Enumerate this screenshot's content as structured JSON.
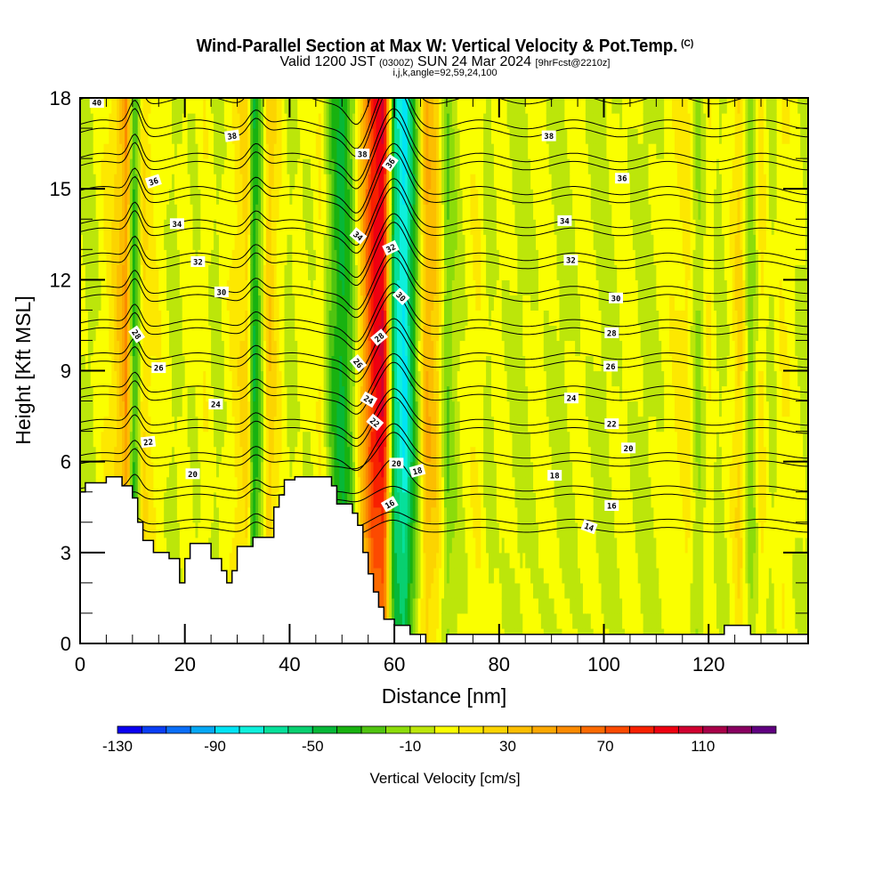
{
  "header": {
    "title": "Wind-Parallel Section at Max W: Vertical Velocity & Pot.Temp.",
    "copyright_mark": "(C)",
    "subtitle_valid": "Valid 1200 JST",
    "subtitle_utc": "(0300Z)",
    "subtitle_date": "SUN 24 Mar 2024",
    "subtitle_fcst": "[9hrFcst@2210z]",
    "params": "i,j,k,angle=92,59,24,100"
  },
  "chart_data": {
    "type": "heatmap",
    "title": "Wind-Parallel Section at Max W: Vertical Velocity & Pot.Temp.",
    "xlabel": "Distance [nm]",
    "ylabel": "Height [Kft MSL]",
    "xlim": [
      0,
      139
    ],
    "ylim": [
      0,
      18
    ],
    "x_ticks": [
      "0",
      "20",
      "40",
      "60",
      "80",
      "100",
      "120"
    ],
    "x_tick_values": [
      0,
      20,
      40,
      60,
      80,
      100,
      120
    ],
    "y_ticks": [
      "0",
      "3",
      "6",
      "9",
      "12",
      "15",
      "18"
    ],
    "y_tick_values": [
      0,
      3,
      6,
      9,
      12,
      15,
      18
    ],
    "colorbar": {
      "title": "Vertical Velocity [cm/s]",
      "min": -130,
      "step": 10,
      "tick_labels": [
        "-130",
        "-90",
        "-50",
        "-10",
        "30",
        "70",
        "110"
      ],
      "tick_values": [
        -130,
        -90,
        -50,
        -10,
        30,
        70,
        110
      ],
      "colors": [
        "#0a00f0",
        "#0a3ef5",
        "#0a6ef8",
        "#05a8f5",
        "#00e4f5",
        "#0ef0dc",
        "#06e09a",
        "#08d070",
        "#06b838",
        "#18b210",
        "#50c410",
        "#8cdc0a",
        "#bce60a",
        "#faff00",
        "#fde800",
        "#fcd400",
        "#fcbe00",
        "#fca800",
        "#fc8a00",
        "#fc6a00",
        "#fc4a00",
        "#f82000",
        "#ee0010",
        "#d00030",
        "#a80048",
        "#880060",
        "#600080"
      ]
    },
    "velocity_field": {
      "description_units": "cm/s",
      "columns": [
        {
          "x": 0,
          "w": 0
        },
        {
          "x": 2,
          "w": -5
        },
        {
          "x": 4,
          "w": 5
        },
        {
          "x": 6,
          "w": 15
        },
        {
          "x": 8,
          "w": 35
        },
        {
          "x": 9,
          "w": 55
        },
        {
          "x": 10,
          "w": -35
        },
        {
          "x": 11,
          "w": -20
        },
        {
          "x": 12,
          "w": 20
        },
        {
          "x": 14,
          "w": 10
        },
        {
          "x": 16,
          "w": 5
        },
        {
          "x": 18,
          "w": -5
        },
        {
          "x": 20,
          "w": 5
        },
        {
          "x": 22,
          "w": 0
        },
        {
          "x": 24,
          "w": 8
        },
        {
          "x": 26,
          "w": -5
        },
        {
          "x": 28,
          "w": 5
        },
        {
          "x": 30,
          "w": 15
        },
        {
          "x": 32,
          "w": 25
        },
        {
          "x": 33,
          "w": -40
        },
        {
          "x": 34,
          "w": -30
        },
        {
          "x": 36,
          "w": 30
        },
        {
          "x": 38,
          "w": 10
        },
        {
          "x": 40,
          "w": -5
        },
        {
          "x": 42,
          "w": 5
        },
        {
          "x": 44,
          "w": 0
        },
        {
          "x": 46,
          "w": 10
        },
        {
          "x": 48,
          "w": -25
        },
        {
          "x": 50,
          "w": -45
        },
        {
          "x": 52,
          "w": -20
        },
        {
          "x": 54,
          "w": 40
        },
        {
          "x": 56,
          "w": 90
        },
        {
          "x": 58,
          "w": 100
        },
        {
          "x": 60,
          "w": -60
        },
        {
          "x": 62,
          "w": -85
        },
        {
          "x": 63,
          "w": -55
        },
        {
          "x": 64,
          "w": -30
        },
        {
          "x": 66,
          "w": 40
        },
        {
          "x": 68,
          "w": 30
        },
        {
          "x": 70,
          "w": -20
        },
        {
          "x": 72,
          "w": -5
        },
        {
          "x": 74,
          "w": 5
        },
        {
          "x": 76,
          "w": 10
        },
        {
          "x": 78,
          "w": -5
        },
        {
          "x": 80,
          "w": 5
        },
        {
          "x": 84,
          "w": -5
        },
        {
          "x": 88,
          "w": 5
        },
        {
          "x": 92,
          "w": -5
        },
        {
          "x": 96,
          "w": 5
        },
        {
          "x": 100,
          "w": -5
        },
        {
          "x": 104,
          "w": 5
        },
        {
          "x": 108,
          "w": -5
        },
        {
          "x": 112,
          "w": 5
        },
        {
          "x": 116,
          "w": 15
        },
        {
          "x": 118,
          "w": -15
        },
        {
          "x": 120,
          "w": 10
        },
        {
          "x": 122,
          "w": -5
        },
        {
          "x": 124,
          "w": 5
        },
        {
          "x": 126,
          "w": 25
        },
        {
          "x": 128,
          "w": -20
        },
        {
          "x": 130,
          "w": 15
        },
        {
          "x": 132,
          "w": -5
        },
        {
          "x": 134,
          "w": 10
        },
        {
          "x": 136,
          "w": 5
        },
        {
          "x": 139,
          "w": -5
        }
      ]
    },
    "terrain_kft": [
      [
        0,
        5.0
      ],
      [
        1,
        5.0
      ],
      [
        1,
        5.3
      ],
      [
        5,
        5.3
      ],
      [
        5,
        5.5
      ],
      [
        8,
        5.5
      ],
      [
        8,
        5.2
      ],
      [
        10,
        5.2
      ],
      [
        10,
        4.8
      ],
      [
        11,
        4.8
      ],
      [
        11,
        4.0
      ],
      [
        12,
        4.0
      ],
      [
        12,
        3.4
      ],
      [
        14,
        3.4
      ],
      [
        14,
        3.0
      ],
      [
        17,
        3.0
      ],
      [
        17,
        2.8
      ],
      [
        19,
        2.8
      ],
      [
        19,
        2.0
      ],
      [
        20,
        2.0
      ],
      [
        20,
        2.8
      ],
      [
        21,
        2.8
      ],
      [
        21,
        3.3
      ],
      [
        25,
        3.3
      ],
      [
        25,
        2.8
      ],
      [
        27,
        2.8
      ],
      [
        27,
        2.4
      ],
      [
        28,
        2.4
      ],
      [
        28,
        2.0
      ],
      [
        29,
        2.0
      ],
      [
        29,
        2.4
      ],
      [
        30,
        2.4
      ],
      [
        30,
        3.2
      ],
      [
        33,
        3.2
      ],
      [
        33,
        3.5
      ],
      [
        37,
        3.5
      ],
      [
        37,
        4.5
      ],
      [
        38,
        4.5
      ],
      [
        38,
        4.9
      ],
      [
        39,
        4.9
      ],
      [
        39,
        5.4
      ],
      [
        41,
        5.4
      ],
      [
        41,
        5.5
      ],
      [
        48,
        5.5
      ],
      [
        48,
        5.2
      ],
      [
        49,
        5.2
      ],
      [
        49,
        4.6
      ],
      [
        52,
        4.6
      ],
      [
        52,
        4.3
      ],
      [
        53,
        4.3
      ],
      [
        53,
        3.9
      ],
      [
        54,
        3.9
      ],
      [
        54,
        3.0
      ],
      [
        55,
        3.0
      ],
      [
        55,
        2.3
      ],
      [
        56,
        2.3
      ],
      [
        56,
        1.7
      ],
      [
        57,
        1.7
      ],
      [
        57,
        1.2
      ],
      [
        58,
        1.2
      ],
      [
        58,
        0.8
      ],
      [
        60,
        0.8
      ],
      [
        60,
        0.6
      ],
      [
        63,
        0.6
      ],
      [
        63,
        0.3
      ],
      [
        66,
        0.3
      ],
      [
        66,
        0.0
      ],
      [
        70,
        0.0
      ],
      [
        70,
        0.3
      ],
      [
        123,
        0.3
      ],
      [
        123,
        0.6
      ],
      [
        128,
        0.6
      ],
      [
        128,
        0.3
      ],
      [
        139,
        0.3
      ]
    ],
    "theta_contours": {
      "levels": [
        14,
        16,
        18,
        20,
        22,
        24,
        26,
        28,
        30,
        32,
        34,
        36,
        38,
        40
      ],
      "labels": [
        {
          "text": "40",
          "x": 3.2,
          "y": 17.85,
          "rot": 0
        },
        {
          "text": "38",
          "x": 29,
          "y": 16.75,
          "rot": -8
        },
        {
          "text": "36",
          "x": 14,
          "y": 15.25,
          "rot": -18
        },
        {
          "text": "34",
          "x": 18.5,
          "y": 13.85,
          "rot": 0
        },
        {
          "text": "32",
          "x": 22.5,
          "y": 12.6,
          "rot": 0
        },
        {
          "text": "30",
          "x": 27,
          "y": 11.6,
          "rot": 0
        },
        {
          "text": "28",
          "x": 10.8,
          "y": 10.2,
          "rot": 55
        },
        {
          "text": "26",
          "x": 15,
          "y": 9.1,
          "rot": 0
        },
        {
          "text": "24",
          "x": 25.9,
          "y": 7.9,
          "rot": 0
        },
        {
          "text": "22",
          "x": 13,
          "y": 6.65,
          "rot": -6
        },
        {
          "text": "20",
          "x": 21.5,
          "y": 5.6,
          "rot": 0
        },
        {
          "text": "38",
          "x": 53.9,
          "y": 16.15,
          "rot": 0
        },
        {
          "text": "36",
          "x": 59.2,
          "y": 15.85,
          "rot": -55
        },
        {
          "text": "34",
          "x": 53.1,
          "y": 13.45,
          "rot": 40
        },
        {
          "text": "32",
          "x": 59.3,
          "y": 13.05,
          "rot": -25
        },
        {
          "text": "30",
          "x": 61.3,
          "y": 11.45,
          "rot": 45
        },
        {
          "text": "28",
          "x": 57.1,
          "y": 10.1,
          "rot": -40
        },
        {
          "text": "26",
          "x": 53.1,
          "y": 9.25,
          "rot": 50
        },
        {
          "text": "24",
          "x": 55.1,
          "y": 8.05,
          "rot": 30
        },
        {
          "text": "22",
          "x": 56.3,
          "y": 7.3,
          "rot": 40
        },
        {
          "text": "20",
          "x": 60.4,
          "y": 5.95,
          "rot": 0
        },
        {
          "text": "18",
          "x": 64.4,
          "y": 5.7,
          "rot": -15
        },
        {
          "text": "16",
          "x": 59.1,
          "y": 4.6,
          "rot": -30
        },
        {
          "text": "38",
          "x": 89.5,
          "y": 16.75,
          "rot": 0
        },
        {
          "text": "36",
          "x": 103.5,
          "y": 15.35,
          "rot": 0
        },
        {
          "text": "34",
          "x": 92.5,
          "y": 13.95,
          "rot": 0
        },
        {
          "text": "32",
          "x": 93.7,
          "y": 12.65,
          "rot": 0
        },
        {
          "text": "30",
          "x": 102.3,
          "y": 11.4,
          "rot": 0
        },
        {
          "text": "28",
          "x": 101.5,
          "y": 10.25,
          "rot": 0
        },
        {
          "text": "26",
          "x": 101.3,
          "y": 9.15,
          "rot": 0
        },
        {
          "text": "24",
          "x": 93.8,
          "y": 8.1,
          "rot": 0
        },
        {
          "text": "22",
          "x": 101.5,
          "y": 7.25,
          "rot": 0
        },
        {
          "text": "20",
          "x": 104.7,
          "y": 6.45,
          "rot": 0
        },
        {
          "text": "18",
          "x": 90.6,
          "y": 5.55,
          "rot": 0
        },
        {
          "text": "16",
          "x": 101.5,
          "y": 4.55,
          "rot": 0
        },
        {
          "text": "14",
          "x": 97.2,
          "y": 3.85,
          "rot": 20
        }
      ]
    }
  }
}
